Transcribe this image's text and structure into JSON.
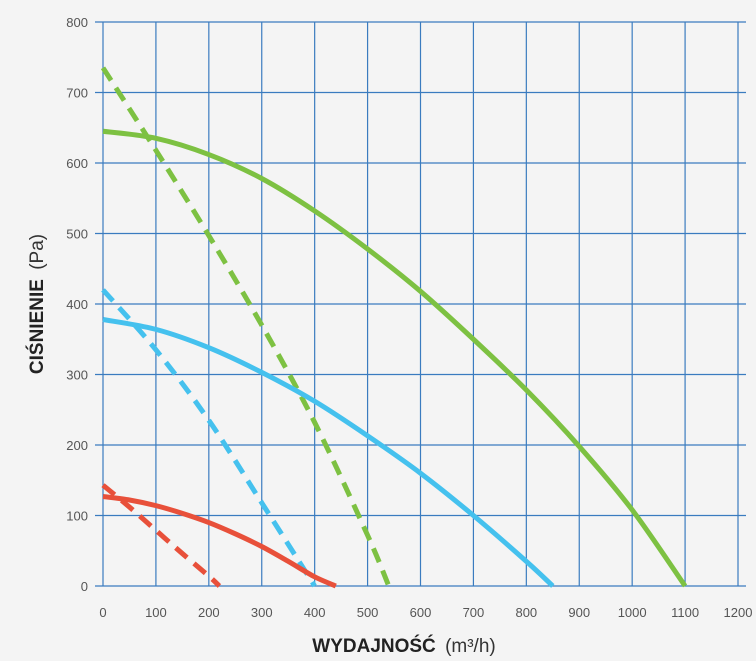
{
  "chart_data": {
    "type": "line",
    "xlabel": "WYDAJNOŚĆ",
    "xlabel_unit": "(m³/h)",
    "ylabel": "CIŚNIENIE",
    "ylabel_unit": "(Pa)",
    "xlim": [
      0,
      1200
    ],
    "ylim": [
      0,
      800
    ],
    "x_ticks": [
      "0",
      "100",
      "200",
      "300",
      "400",
      "500",
      "600",
      "700",
      "800",
      "900",
      "1000",
      "1100",
      "1200"
    ],
    "y_ticks": [
      "0",
      "100",
      "200",
      "300",
      "400",
      "500",
      "600",
      "700",
      "800"
    ],
    "grid": true,
    "colors": {
      "grid": "#3a7bbf",
      "green": "#7dc142",
      "blue": "#45c1ee",
      "red": "#e8503a",
      "background": "#f4f4f4"
    },
    "series": [
      {
        "color": "#7dc142",
        "style": "solid",
        "x": [
          0,
          100,
          200,
          300,
          400,
          500,
          600,
          700,
          800,
          900,
          1000,
          1100
        ],
        "y": [
          645,
          635,
          612,
          578,
          532,
          478,
          418,
          350,
          278,
          198,
          108,
          0
        ]
      },
      {
        "color": "#7dc142",
        "style": "dashed",
        "x": [
          0,
          100,
          200,
          300,
          400,
          500,
          540
        ],
        "y": [
          735,
          618,
          497,
          370,
          232,
          72,
          0
        ]
      },
      {
        "color": "#45c1ee",
        "style": "solid",
        "x": [
          0,
          100,
          200,
          300,
          400,
          500,
          600,
          700,
          800,
          850
        ],
        "y": [
          378,
          364,
          338,
          303,
          262,
          213,
          160,
          100,
          35,
          0
        ]
      },
      {
        "color": "#45c1ee",
        "style": "dashed",
        "x": [
          0,
          100,
          200,
          300,
          400
        ],
        "y": [
          420,
          335,
          235,
          118,
          0
        ]
      },
      {
        "color": "#e8503a",
        "style": "solid",
        "x": [
          0,
          50,
          100,
          150,
          200,
          250,
          300,
          350,
          400,
          440
        ],
        "y": [
          127,
          122,
          114,
          103,
          90,
          74,
          56,
          35,
          13,
          0
        ]
      },
      {
        "color": "#e8503a",
        "style": "dashed",
        "x": [
          0,
          50,
          100,
          150,
          200,
          220
        ],
        "y": [
          143,
          112,
          79,
          46,
          14,
          0
        ]
      }
    ]
  }
}
